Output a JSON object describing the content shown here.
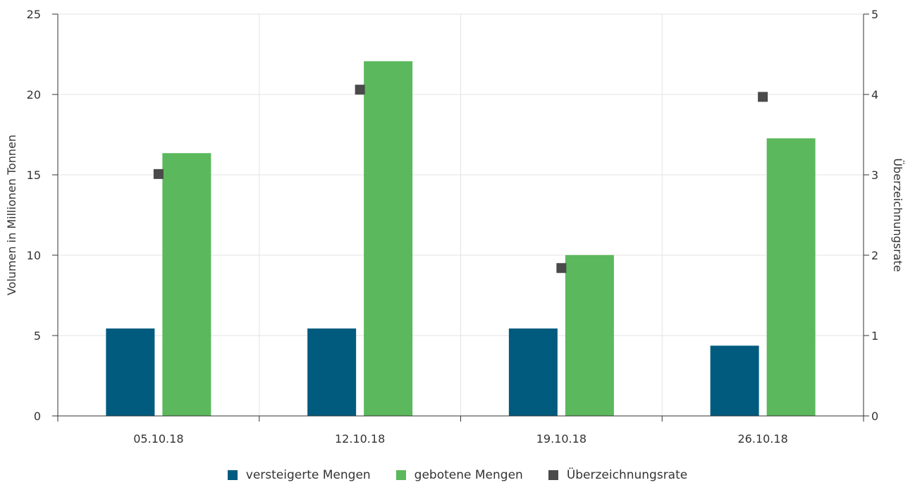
{
  "chart_data": {
    "type": "bar",
    "categories": [
      "05.10.18",
      "12.10.18",
      "19.10.18",
      "26.10.18"
    ],
    "series": [
      {
        "name": "versteigerte Mengen",
        "type": "bar",
        "axis": "left",
        "color": "#005b7f",
        "values": [
          5.44,
          5.44,
          5.44,
          4.37
        ]
      },
      {
        "name": "gebotene Mengen",
        "type": "bar",
        "axis": "left",
        "color": "#5cb85c",
        "values": [
          16.35,
          22.07,
          10.01,
          17.27
        ]
      },
      {
        "name": "Überzeichnungsrate",
        "type": "scatter",
        "axis": "right",
        "color": "#4a4a4a",
        "values": [
          3.01,
          4.06,
          1.84,
          3.97
        ]
      }
    ],
    "ylabel": "Volumen in Millionen Tonnen",
    "y2label": "Überzeichnungsrate",
    "ylim": [
      0,
      25
    ],
    "y2lim": [
      0,
      5
    ],
    "yticks": [
      "0",
      "5",
      "10",
      "15",
      "20",
      "25"
    ],
    "y2ticks": [
      "0",
      "1",
      "2",
      "3",
      "4",
      "5"
    ],
    "grid": true,
    "legend_position": "bottom"
  }
}
